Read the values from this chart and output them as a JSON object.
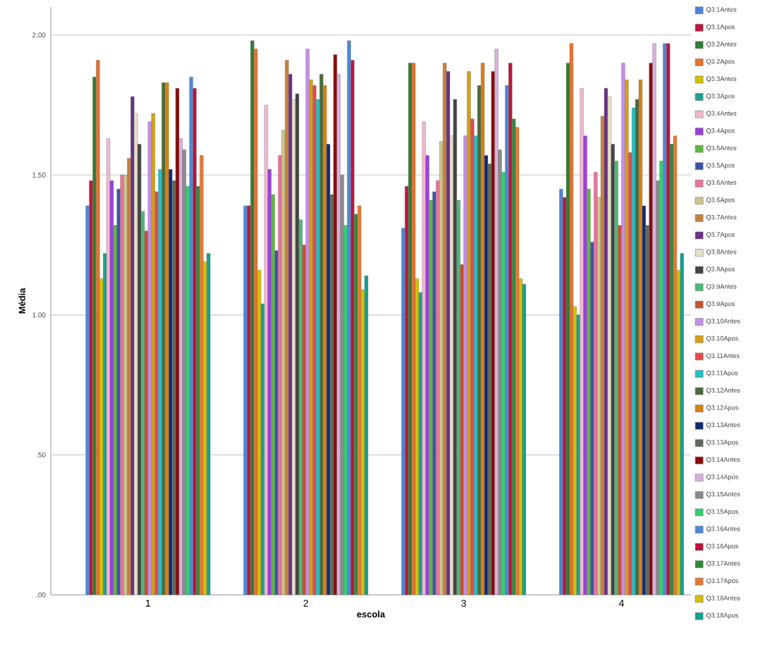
{
  "chart_data": {
    "type": "bar",
    "xlabel": "escola",
    "ylabel": "Média",
    "categories": [
      "1",
      "2",
      "3",
      "4"
    ],
    "ylim": [
      0,
      2.1
    ],
    "yticks": [
      {
        "value": 0,
        "label": ".00"
      },
      {
        "value": 0.5,
        "label": ".50"
      },
      {
        "value": 1,
        "label": "1.00"
      },
      {
        "value": 1.5,
        "label": "1.50"
      },
      {
        "value": 2,
        "label": "2.00"
      }
    ],
    "grid": "y",
    "legend": "right",
    "series": [
      {
        "name": "Q3.1Antes",
        "color": "#4a86d8",
        "values": [
          1.39,
          1.39,
          1.31,
          1.45
        ]
      },
      {
        "name": "Q3.1Apos",
        "color": "#c0143c",
        "values": [
          1.48,
          1.39,
          1.46,
          1.42
        ]
      },
      {
        "name": "Q3.2Antes",
        "color": "#2e7d32",
        "values": [
          1.85,
          1.98,
          1.9,
          1.9
        ]
      },
      {
        "name": "Q3.2Apos",
        "color": "#e8702a",
        "values": [
          1.91,
          1.95,
          1.9,
          1.97
        ]
      },
      {
        "name": "Q3.3Antes",
        "color": "#d4c200",
        "values": [
          1.13,
          1.16,
          1.13,
          1.03
        ]
      },
      {
        "name": "Q3.3Apos",
        "color": "#1aa38c",
        "values": [
          1.22,
          1.04,
          1.08,
          1.0
        ]
      },
      {
        "name": "Q3.4Antes",
        "color": "#f2b8d0",
        "values": [
          1.63,
          1.75,
          1.69,
          1.81
        ]
      },
      {
        "name": "Q3.4Apos",
        "color": "#9b3fe0",
        "values": [
          1.48,
          1.52,
          1.57,
          1.64
        ]
      },
      {
        "name": "Q3.5Antes",
        "color": "#5cb83c",
        "values": [
          1.32,
          1.43,
          1.41,
          1.45
        ]
      },
      {
        "name": "Q3.5Apos",
        "color": "#3a55a8",
        "values": [
          1.45,
          1.23,
          1.44,
          1.26
        ]
      },
      {
        "name": "Q3.6Antes",
        "color": "#e8739c",
        "values": [
          1.5,
          1.57,
          1.48,
          1.51
        ]
      },
      {
        "name": "Q3.6Apos",
        "color": "#cfc48a",
        "values": [
          1.5,
          1.66,
          1.62,
          1.42
        ]
      },
      {
        "name": "Q3.7Antes",
        "color": "#c8803a",
        "values": [
          1.56,
          1.91,
          1.9,
          1.71
        ]
      },
      {
        "name": "Q3.7Apos",
        "color": "#6a2f86",
        "values": [
          1.78,
          1.86,
          1.87,
          1.81
        ]
      },
      {
        "name": "Q3.8Antes",
        "color": "#e6e0c8",
        "values": [
          1.72,
          1.77,
          1.64,
          1.78
        ]
      },
      {
        "name": "Q3.8Apos",
        "color": "#444444",
        "values": [
          1.61,
          1.79,
          1.77,
          1.61
        ]
      },
      {
        "name": "Q3.9Antes",
        "color": "#4cb87a",
        "values": [
          1.37,
          1.34,
          1.41,
          1.55
        ]
      },
      {
        "name": "Q3.9Apos",
        "color": "#c8502a",
        "values": [
          1.3,
          1.25,
          1.18,
          1.32
        ]
      },
      {
        "name": "Q3.10Antes",
        "color": "#c58ee8",
        "values": [
          1.69,
          1.95,
          1.64,
          1.9
        ]
      },
      {
        "name": "Q3.10Apos",
        "color": "#d4a010",
        "values": [
          1.72,
          1.84,
          1.87,
          1.84
        ]
      },
      {
        "name": "Q3.11Antes",
        "color": "#e84848",
        "values": [
          1.44,
          1.82,
          1.7,
          1.58
        ]
      },
      {
        "name": "Q3.11Apos",
        "color": "#20c0c8",
        "values": [
          1.52,
          1.77,
          1.64,
          1.74
        ]
      },
      {
        "name": "Q3.12Antes",
        "color": "#4a6a3a",
        "values": [
          1.83,
          1.86,
          1.82,
          1.77
        ]
      },
      {
        "name": "Q3.12Apos",
        "color": "#d88010",
        "values": [
          1.83,
          1.82,
          1.9,
          1.84
        ]
      },
      {
        "name": "Q3.13Antes",
        "color": "#10287a",
        "values": [
          1.52,
          1.61,
          1.57,
          1.39
        ]
      },
      {
        "name": "Q3.13Apos",
        "color": "#5a6a5a",
        "values": [
          1.48,
          1.43,
          1.54,
          1.32
        ]
      },
      {
        "name": "Q3.14Antes",
        "color": "#8a0a0a",
        "values": [
          1.81,
          1.93,
          1.87,
          1.9
        ]
      },
      {
        "name": "Q3.14Apos",
        "color": "#d8b0e0",
        "values": [
          1.63,
          1.86,
          1.95,
          1.97
        ]
      },
      {
        "name": "Q3.15Antes",
        "color": "#8a8a8a",
        "values": [
          1.59,
          1.5,
          1.59,
          1.48
        ]
      },
      {
        "name": "Q3.15Apos",
        "color": "#30d070",
        "values": [
          1.46,
          1.32,
          1.51,
          1.55
        ]
      },
      {
        "name": "Q3.16Antes",
        "color": "#4a8ad8",
        "values": [
          1.85,
          1.98,
          1.82,
          1.97
        ]
      },
      {
        "name": "Q3.16Apos",
        "color": "#c0103c",
        "values": [
          1.81,
          1.91,
          1.9,
          1.97
        ]
      },
      {
        "name": "Q3.17Antes",
        "color": "#2e8a3a",
        "values": [
          1.46,
          1.36,
          1.7,
          1.61
        ]
      },
      {
        "name": "Q3.17Apos",
        "color": "#e87830",
        "values": [
          1.57,
          1.39,
          1.67,
          1.64
        ]
      },
      {
        "name": "Q3.18Antes",
        "color": "#d4c000",
        "values": [
          1.19,
          1.09,
          1.13,
          1.16
        ]
      },
      {
        "name": "Q3.18Apos",
        "color": "#10a090",
        "values": [
          1.22,
          1.14,
          1.11,
          1.22
        ]
      }
    ]
  }
}
